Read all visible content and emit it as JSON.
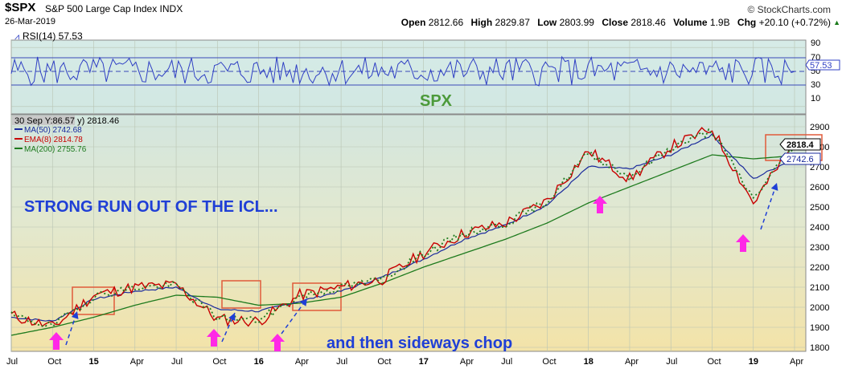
{
  "header": {
    "symbol": "$SPX",
    "name": "S&P 500 Large Cap Index INDX",
    "date": "26-Mar-2019",
    "brand": "© StockCharts.com",
    "open_label": "Open",
    "open": "2812.66",
    "high_label": "High",
    "high": "2829.87",
    "low_label": "Low",
    "low": "2803.99",
    "close_label": "Close",
    "close": "2818.46",
    "volume_label": "Volume",
    "volume": "1.9B",
    "chg_label": "Chg",
    "chg": "+20.10 (+0.72%)",
    "chg_arrow": "▲"
  },
  "rsi_panel": {
    "legend": "RSI(14) 57.53",
    "ticks": [
      "90",
      "70",
      "50",
      "30",
      "10"
    ],
    "current_label": "57.53",
    "watermark": "SPX"
  },
  "price_panel": {
    "legend_main": "30 Sep Y:86.57 y) 2818.46",
    "legend_ma50": "MA(50) 2742.68",
    "legend_ema8": "EMA(8) 2814.78",
    "legend_ma200": "MA(200) 2755.76",
    "price_tag_close": "2818.4",
    "price_tag_ma": "2742.6",
    "annotation_top": "STRONG RUN OUT OF THE ICL...",
    "annotation_bottom": "and then sideways chop",
    "y_ticks": [
      "2900",
      "2800",
      "2700",
      "2600",
      "2500",
      "2400",
      "2300",
      "2200",
      "2100",
      "2000",
      "1900",
      "1800"
    ],
    "x_ticks": [
      "Jul",
      "Oct",
      "15",
      "Apr",
      "Jul",
      "Oct",
      "16",
      "Apr",
      "Jul",
      "Oct",
      "17",
      "Apr",
      "Jul",
      "Oct",
      "18",
      "Apr",
      "Jul",
      "Oct",
      "19",
      "Apr"
    ]
  },
  "colors": {
    "price": "#c80000",
    "price_up": "#1e7a1e",
    "ma50": "#1a2a9c",
    "ma200": "#1d7a1d",
    "rsi": "#2f3fc4",
    "annotation": "#1f3fd6",
    "magenta": "#ff28e6",
    "box": "#e05a3a"
  },
  "chart_data": [
    {
      "type": "line",
      "title": "RSI(14)",
      "ylim": [
        0,
        100
      ],
      "reference_lines": [
        70,
        50,
        30
      ],
      "last_value": 57.53
    },
    {
      "type": "line",
      "title": "$SPX S&P 500 Large Cap Index INDX",
      "x": [
        "2014-07",
        "2014-10",
        "2015-01",
        "2015-04",
        "2015-07",
        "2015-10",
        "2016-01",
        "2016-04",
        "2016-07",
        "2016-10",
        "2017-01",
        "2017-04",
        "2017-07",
        "2017-10",
        "2018-01",
        "2018-04",
        "2018-07",
        "2018-10",
        "2019-01",
        "2019-04"
      ],
      "ylim": [
        1780,
        2960
      ],
      "series": [
        {
          "name": "$SPX",
          "values": [
            1960,
            1900,
            2060,
            2100,
            2110,
            1940,
            1930,
            2060,
            2100,
            2140,
            2270,
            2370,
            2420,
            2530,
            2780,
            2640,
            2800,
            2890,
            2520,
            2818
          ]
        },
        {
          "name": "MA(50)",
          "values": [
            1950,
            1930,
            2040,
            2080,
            2100,
            1990,
            1980,
            2030,
            2080,
            2150,
            2240,
            2340,
            2410,
            2510,
            2700,
            2690,
            2760,
            2860,
            2640,
            2743
          ]
        },
        {
          "name": "EMA(8)",
          "values": [
            1958,
            1905,
            2055,
            2098,
            2108,
            1950,
            1935,
            2055,
            2098,
            2140,
            2268,
            2368,
            2418,
            2528,
            2770,
            2650,
            2795,
            2880,
            2540,
            2815
          ]
        },
        {
          "name": "MA(200)",
          "values": [
            1860,
            1900,
            1950,
            2010,
            2060,
            2050,
            2010,
            2020,
            2050,
            2120,
            2200,
            2270,
            2340,
            2420,
            2520,
            2600,
            2680,
            2760,
            2740,
            2756
          ]
        }
      ]
    }
  ]
}
